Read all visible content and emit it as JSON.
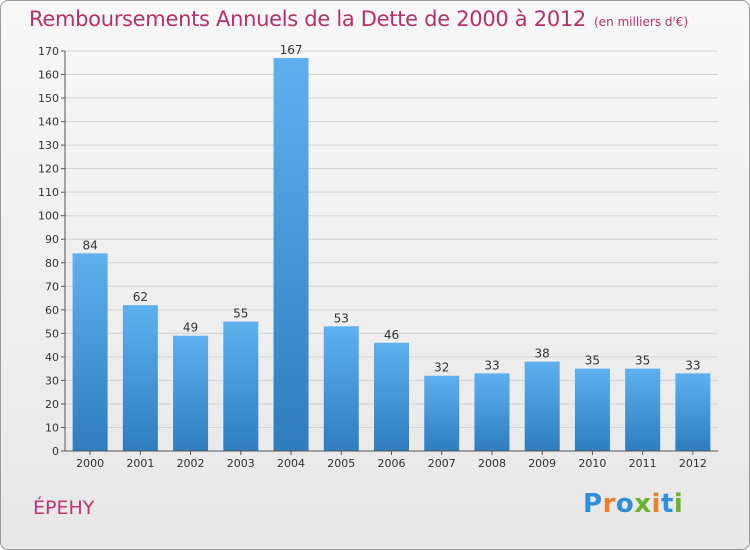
{
  "header": {
    "title": "Remboursements Annuels de la Dette de 2000 à 2012",
    "unit": "(en milliers d'€)"
  },
  "footer": {
    "commune": "ÉPEHY",
    "logo_letters": [
      "P",
      "r",
      "o",
      "x",
      "i",
      "t",
      "i"
    ],
    "logo_colors": [
      "#2f8fd8",
      "#e8822c",
      "#2f8fd8",
      "#6bb22a",
      "#e8822c",
      "#2f8fd8",
      "#6bb22a"
    ]
  },
  "colors": {
    "title": "#b8306a",
    "bar_top": "#5fb0ee",
    "bar_bottom": "#2e7dbf",
    "grid": "#d2d2d2"
  },
  "chart_data": {
    "type": "bar",
    "title": "Remboursements Annuels de la Dette de 2000 à 2012",
    "subtitle": "(en milliers d'€)",
    "xlabel": "",
    "ylabel": "",
    "categories": [
      "2000",
      "2001",
      "2002",
      "2003",
      "2004",
      "2005",
      "2006",
      "2007",
      "2008",
      "2009",
      "2010",
      "2011",
      "2012"
    ],
    "values": [
      84,
      62,
      49,
      55,
      167,
      53,
      46,
      32,
      33,
      38,
      35,
      35,
      33
    ],
    "ylim": [
      0,
      170
    ],
    "yticks": [
      0,
      10,
      20,
      30,
      40,
      50,
      60,
      70,
      80,
      90,
      100,
      110,
      120,
      130,
      140,
      150,
      160,
      170
    ],
    "grid": true,
    "data_labels": true
  }
}
